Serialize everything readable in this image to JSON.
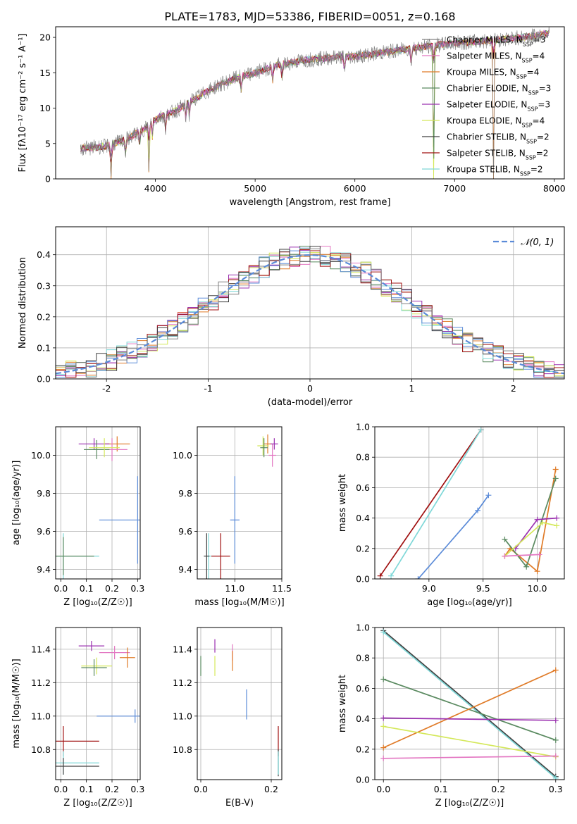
{
  "title": "PLATE=1783, MJD=53386, FIBERID=0051, z=0.168",
  "legend_entries": [
    {
      "model": "Chabrier MILES",
      "nssp": "3",
      "color": "#808080"
    },
    {
      "model": "Salpeter MILES",
      "nssp": "4",
      "color": "#e377c2"
    },
    {
      "model": "Kroupa MILES",
      "nssp": "4",
      "color": "#e07b28"
    },
    {
      "model": "Chabrier ELODIE",
      "nssp": "3",
      "color": "#5a8a60"
    },
    {
      "model": "Salpeter ELODIE",
      "nssp": "3",
      "color": "#9b30b0"
    },
    {
      "model": "Kroupa ELODIE",
      "nssp": "4",
      "color": "#d4e85a"
    },
    {
      "model": "Chabrier STELIB",
      "nssp": "2",
      "color": "#404040"
    },
    {
      "model": "Salpeter STELIB",
      "nssp": "2",
      "color": "#a01010"
    },
    {
      "model": "Kroupa STELIB",
      "nssp": "2",
      "color": "#7fd8d8"
    }
  ],
  "nssp_prefix": "N",
  "nssp_sub": "SSP",
  "chart_data": [
    {
      "id": "spectrum",
      "type": "line",
      "xlabel": "wavelength [Angstrom, rest frame]",
      "ylabel": "Flux [fλ10⁻¹⁷ erg cm⁻² s⁻¹ A⁻¹]",
      "xlim": [
        3000,
        8100
      ],
      "ylim": [
        0,
        21.5
      ],
      "xticks": [
        4000,
        5000,
        6000,
        7000,
        8000
      ],
      "yticks": [
        0,
        5,
        10,
        15,
        20
      ],
      "continuum": {
        "x": [
          3250,
          3500,
          3700,
          3900,
          4000,
          4200,
          4400,
          4600,
          4800,
          5000,
          5200,
          5500,
          5800,
          6000,
          6300,
          6600,
          7000,
          7400,
          7800,
          7950
        ],
        "y": [
          4.3,
          4.6,
          5.5,
          7.2,
          8.5,
          9.6,
          11.4,
          13.0,
          14.2,
          15.0,
          16.0,
          16.8,
          17.2,
          17.3,
          17.9,
          18.5,
          19.2,
          19.6,
          20.2,
          20.6
        ]
      },
      "absorption_lines": [
        3555,
        3700,
        3840,
        3935,
        3970,
        4102,
        4305,
        4340,
        4861,
        5175,
        5270,
        5895,
        6565,
        6790,
        7390
      ]
    },
    {
      "id": "residuals",
      "type": "histogram",
      "xlabel": "(data-model)/error",
      "ylabel": "Normed distribution",
      "xlim": [
        -2.5,
        2.5
      ],
      "ylim": [
        0,
        0.49
      ],
      "xticks": [
        -2,
        -1,
        0,
        1,
        2
      ],
      "yticks": [
        0.0,
        0.1,
        0.2,
        0.3,
        0.4
      ],
      "bin_width": 0.1,
      "reference": {
        "name": "𝒩(0, 1)",
        "color": "#5b8bd8"
      }
    },
    {
      "id": "age-vs-Z",
      "type": "scatter",
      "xlabel": "Z [log₁₀(Z/Z☉)]",
      "ylabel": "age  [log₁₀(age/yr)]",
      "xlim": [
        -0.02,
        0.31
      ],
      "ylim": [
        9.35,
        10.15
      ],
      "xticks": [
        0.0,
        0.1,
        0.2,
        0.3
      ],
      "yticks": [
        9.4,
        9.6,
        9.8,
        10.0
      ],
      "points": [
        {
          "x": 0.22,
          "y": 10.06,
          "xerr": 0.05,
          "yerr": 0.04,
          "color": "#e07b28"
        },
        {
          "x": 0.2,
          "y": 10.03,
          "xerr": 0.06,
          "yerr": 0.06,
          "color": "#e377c2"
        },
        {
          "x": 0.13,
          "y": 10.06,
          "xerr": 0.06,
          "yerr": 0.03,
          "color": "#9b30b0"
        },
        {
          "x": 0.14,
          "y": 10.03,
          "xerr": 0.05,
          "yerr": 0.05,
          "color": "#5a8a60"
        },
        {
          "x": 0.17,
          "y": 10.04,
          "xerr": 0.06,
          "yerr": 0.05,
          "color": "#d4e85a"
        },
        {
          "x": 0.3,
          "y": 9.66,
          "xerr": 0.15,
          "yerr": 0.23,
          "color": "#5b8bd8"
        },
        {
          "x": 0.01,
          "y": 9.47,
          "xerr": 0.14,
          "yerr": 0.12,
          "color": "#7fd8d8"
        },
        {
          "x": 0.01,
          "y": 9.47,
          "xerr": 0.12,
          "yerr": 0.1,
          "color": "#5a8a60"
        }
      ]
    },
    {
      "id": "age-vs-mass",
      "type": "scatter",
      "xlabel": "mass [log₁₀(M/M☉)]",
      "ylabel": "",
      "xlim": [
        10.6,
        11.5
      ],
      "ylim": [
        9.35,
        10.15
      ],
      "xticks": [
        11.0,
        11.5
      ],
      "yticks": [
        9.4,
        9.6,
        9.8,
        10.0
      ],
      "points": [
        {
          "x": 11.35,
          "y": 10.06,
          "xerr": 0.04,
          "yerr": 0.05,
          "color": "#e07b28"
        },
        {
          "x": 11.4,
          "y": 10.0,
          "xerr": 0.04,
          "yerr": 0.06,
          "color": "#e377c2"
        },
        {
          "x": 11.42,
          "y": 10.06,
          "xerr": 0.04,
          "yerr": 0.03,
          "color": "#9b30b0"
        },
        {
          "x": 11.3,
          "y": 10.05,
          "xerr": 0.06,
          "yerr": 0.05,
          "color": "#d4e85a"
        },
        {
          "x": 11.31,
          "y": 10.04,
          "xerr": 0.04,
          "yerr": 0.05,
          "color": "#5a8a60"
        },
        {
          "x": 11.0,
          "y": 9.66,
          "xerr": 0.05,
          "yerr": 0.23,
          "color": "#5b8bd8"
        },
        {
          "x": 10.85,
          "y": 9.47,
          "xerr": 0.1,
          "yerr": 0.12,
          "color": "#a01010"
        },
        {
          "x": 10.72,
          "y": 9.47,
          "xerr": 0.03,
          "yerr": 0.12,
          "color": "#7fd8d8"
        },
        {
          "x": 10.7,
          "y": 9.47,
          "xerr": 0.03,
          "yerr": 0.12,
          "color": "#404040"
        }
      ]
    },
    {
      "id": "weight-vs-age",
      "type": "line",
      "xlabel": "age  [log₁₀(age/yr)]",
      "ylabel": "mass weight",
      "xlim": [
        8.5,
        10.25
      ],
      "ylim": [
        0,
        1
      ],
      "xticks": [
        9.0,
        9.5,
        10.0
      ],
      "yticks": [
        0.0,
        0.2,
        0.4,
        0.6,
        0.8,
        1.0
      ],
      "series": [
        {
          "color": "#a01010",
          "x": [
            8.55,
            9.48
          ],
          "y": [
            0.02,
            0.98
          ]
        },
        {
          "color": "#7fd8d8",
          "x": [
            8.65,
            9.48
          ],
          "y": [
            0.02,
            0.98
          ]
        },
        {
          "color": "#5b8bd8",
          "x": [
            8.9,
            9.45,
            9.55
          ],
          "y": [
            0.0,
            0.45,
            0.55
          ]
        },
        {
          "color": "#e07b28",
          "x": [
            9.7,
            9.75,
            10.0,
            10.17
          ],
          "y": [
            0.15,
            0.2,
            0.05,
            0.72
          ]
        },
        {
          "color": "#5a8a60",
          "x": [
            9.7,
            9.9,
            10.17
          ],
          "y": [
            0.26,
            0.08,
            0.66
          ]
        },
        {
          "color": "#9b30b0",
          "x": [
            9.8,
            10.0,
            10.18
          ],
          "y": [
            0.2,
            0.39,
            0.4
          ]
        },
        {
          "color": "#d4e85a",
          "x": [
            9.7,
            10.05,
            10.18
          ],
          "y": [
            0.15,
            0.37,
            0.35
          ]
        },
        {
          "color": "#e377c2",
          "x": [
            9.7,
            10.02
          ],
          "y": [
            0.15,
            0.16
          ]
        }
      ]
    },
    {
      "id": "mass-vs-Z",
      "type": "scatter",
      "xlabel": "Z [log₁₀(Z/Z☉)]",
      "ylabel": "mass [log₁₀(M/M☉)]",
      "xlim": [
        -0.02,
        0.31
      ],
      "ylim": [
        10.62,
        11.53
      ],
      "xticks": [
        0.0,
        0.1,
        0.2,
        0.3
      ],
      "yticks": [
        10.8,
        11.0,
        11.2,
        11.4
      ],
      "points": [
        {
          "x": 0.12,
          "y": 11.42,
          "xerr": 0.05,
          "yerr": 0.03,
          "color": "#9b30b0"
        },
        {
          "x": 0.21,
          "y": 11.38,
          "xerr": 0.06,
          "yerr": 0.04,
          "color": "#e377c2"
        },
        {
          "x": 0.26,
          "y": 11.35,
          "xerr": 0.03,
          "yerr": 0.06,
          "color": "#e07b28"
        },
        {
          "x": 0.14,
          "y": 11.3,
          "xerr": 0.06,
          "yerr": 0.05,
          "color": "#d4e85a"
        },
        {
          "x": 0.13,
          "y": 11.29,
          "xerr": 0.05,
          "yerr": 0.05,
          "color": "#5a8a60"
        },
        {
          "x": 0.29,
          "y": 11.0,
          "xerr": 0.15,
          "yerr": 0.04,
          "color": "#5b8bd8"
        },
        {
          "x": 0.01,
          "y": 10.85,
          "xerr": 0.14,
          "yerr": 0.09,
          "color": "#a01010"
        },
        {
          "x": 0.01,
          "y": 10.72,
          "xerr": 0.14,
          "yerr": 0.07,
          "color": "#7fd8d8"
        },
        {
          "x": 0.01,
          "y": 10.7,
          "xerr": 0.14,
          "yerr": 0.05,
          "color": "#404040"
        }
      ]
    },
    {
      "id": "mass-vs-ebv",
      "type": "scatter",
      "xlabel": "E(B-V)",
      "ylabel": "",
      "xlim": [
        -0.01,
        0.23
      ],
      "ylim": [
        10.62,
        11.53
      ],
      "xticks": [
        0.0,
        0.2
      ],
      "yticks": [
        10.8,
        11.0,
        11.2,
        11.4
      ],
      "points": [
        {
          "x": 0.0,
          "y": 11.3,
          "xerr": 0.0,
          "yerr": 0.06,
          "color": "#5a8a60"
        },
        {
          "x": 0.04,
          "y": 11.3,
          "xerr": 0.0,
          "yerr": 0.06,
          "color": "#d4e85a"
        },
        {
          "x": 0.04,
          "y": 11.42,
          "xerr": 0.0,
          "yerr": 0.04,
          "color": "#9b30b0"
        },
        {
          "x": 0.09,
          "y": 11.38,
          "xerr": 0.0,
          "yerr": 0.05,
          "color": "#e377c2"
        },
        {
          "x": 0.09,
          "y": 11.33,
          "xerr": 0.0,
          "yerr": 0.06,
          "color": "#e07b28"
        },
        {
          "x": 0.13,
          "y": 11.07,
          "xerr": 0.0,
          "yerr": 0.09,
          "color": "#5b8bd8"
        },
        {
          "x": 0.22,
          "y": 10.85,
          "xerr": 0.0,
          "yerr": 0.09,
          "color": "#a01010"
        },
        {
          "x": 0.22,
          "y": 10.72,
          "xerr": 0.0,
          "yerr": 0.08,
          "color": "#404040"
        },
        {
          "x": 0.22,
          "y": 10.72,
          "xerr": 0.0,
          "yerr": 0.07,
          "color": "#7fd8d8"
        }
      ]
    },
    {
      "id": "weight-vs-Z",
      "type": "line",
      "xlabel": "Z [log₁₀(Z/Z☉)]",
      "ylabel": "mass weight",
      "xlim": [
        -0.015,
        0.315
      ],
      "ylim": [
        0,
        1
      ],
      "xticks": [
        0.0,
        0.1,
        0.2,
        0.3
      ],
      "yticks": [
        0.0,
        0.2,
        0.4,
        0.6,
        0.8,
        1.0
      ],
      "series": [
        {
          "color": "#404040",
          "x": [
            0.0,
            0.3
          ],
          "y": [
            0.98,
            0.02
          ]
        },
        {
          "color": "#7fd8d8",
          "x": [
            0.0,
            0.3
          ],
          "y": [
            0.97,
            0.01
          ]
        },
        {
          "color": "#5a8a60",
          "x": [
            0.0,
            0.3
          ],
          "y": [
            0.66,
            0.26
          ]
        },
        {
          "color": "#e07b28",
          "x": [
            0.0,
            0.3
          ],
          "y": [
            0.21,
            0.72
          ]
        },
        {
          "color": "#9b30b0",
          "x": [
            0.0,
            0.3
          ],
          "y": [
            0.405,
            0.39
          ]
        },
        {
          "color": "#d4e85a",
          "x": [
            0.0,
            0.3
          ],
          "y": [
            0.35,
            0.15
          ]
        },
        {
          "color": "#e377c2",
          "x": [
            0.0,
            0.3
          ],
          "y": [
            0.14,
            0.155
          ]
        }
      ]
    }
  ]
}
